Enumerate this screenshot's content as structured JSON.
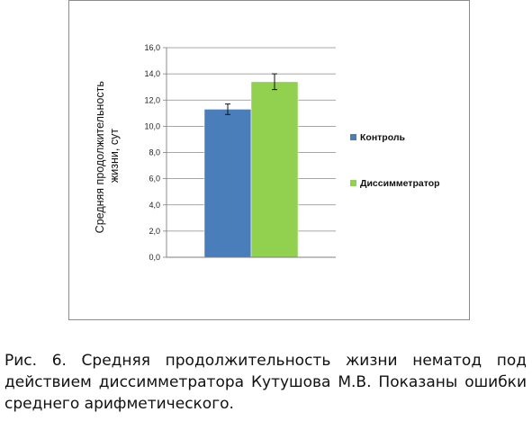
{
  "chart_data": {
    "type": "bar",
    "categories": [
      ""
    ],
    "series": [
      {
        "name": "Контроль",
        "values": [
          11.3
        ],
        "error": [
          0.4
        ],
        "color": "#4a7ebb"
      },
      {
        "name": "Диссимметратор",
        "values": [
          13.4
        ],
        "error": [
          0.6
        ],
        "color": "#92d050"
      }
    ],
    "ylabel_lines": [
      "Средняя продолжительность",
      "жизни, сут"
    ],
    "ylim": [
      0,
      16
    ],
    "yticks": [
      "0,0",
      "2,0",
      "4,0",
      "6,0",
      "8,0",
      "10,0",
      "12,0",
      "14,0",
      "16,0"
    ],
    "grid": true,
    "legend_position": "right"
  },
  "caption": "Рис. 6. Средняя продолжительность жизни нематод под действием диссимметратора Кутушова М.В. Показаны ошибки среднего арифметического."
}
